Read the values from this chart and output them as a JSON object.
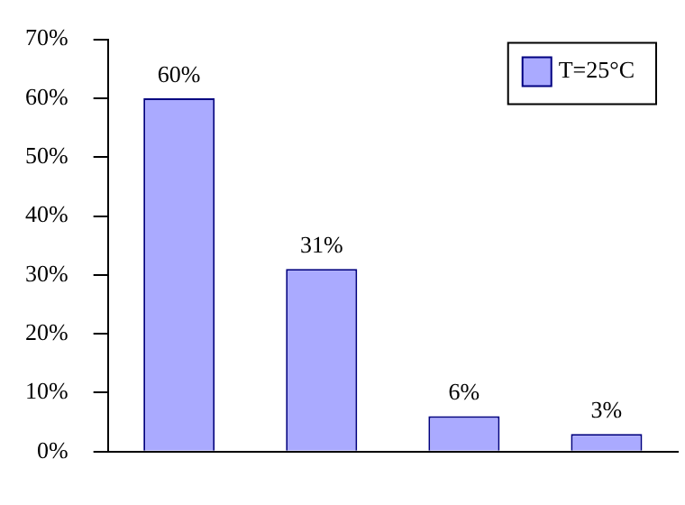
{
  "chart_data": {
    "type": "bar",
    "categories": [
      null,
      null,
      null,
      null
    ],
    "series": [
      {
        "name": "T=25°C",
        "color": "#aaaaff",
        "values": [
          60,
          31,
          6,
          3
        ],
        "value_labels": [
          "60%",
          "31%",
          "6%",
          "3%"
        ]
      }
    ],
    "ylim": [
      0,
      70
    ],
    "yticks": [
      {
        "value": 0,
        "label": "0%"
      },
      {
        "value": 10,
        "label": "10%"
      },
      {
        "value": 20,
        "label": "20%"
      },
      {
        "value": 30,
        "label": "30%"
      },
      {
        "value": 40,
        "label": "40%"
      },
      {
        "value": 50,
        "label": "50%"
      },
      {
        "value": 60,
        "label": "60%"
      },
      {
        "value": 70,
        "label": "70%"
      }
    ],
    "grid": false,
    "legend": "top right"
  }
}
